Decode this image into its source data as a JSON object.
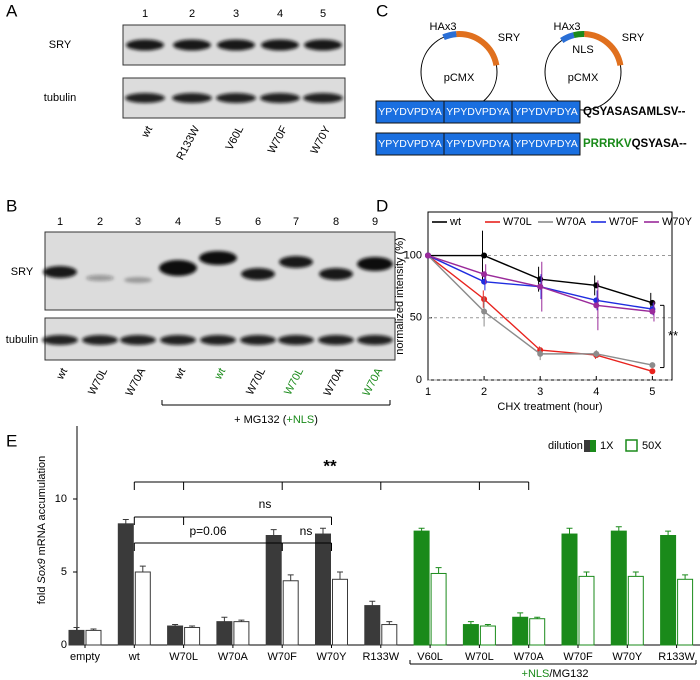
{
  "panels": {
    "a": "A",
    "b": "B",
    "c": "C",
    "d": "D",
    "e": "E"
  },
  "panel_a": {
    "lane_numbers": [
      1,
      2,
      3,
      4,
      5
    ],
    "rows": [
      "SRY",
      "tubulin"
    ],
    "lanes": [
      "wt",
      "R133W",
      "V60L",
      "W70F",
      "W70Y"
    ]
  },
  "panel_b": {
    "lane_numbers": [
      1,
      2,
      3,
      4,
      5,
      6,
      7,
      8,
      9
    ],
    "rows": [
      "SRY",
      "tubulin"
    ],
    "lanes": [
      {
        "label": "wt",
        "color": "#000000"
      },
      {
        "label": "W70L",
        "color": "#000000"
      },
      {
        "label": "W70A",
        "color": "#000000"
      },
      {
        "label": "wt",
        "color": "#000000"
      },
      {
        "label": "wt",
        "color": "#1a8a1a"
      },
      {
        "label": "W70L",
        "color": "#000000"
      },
      {
        "label": "W70L",
        "color": "#1a8a1a"
      },
      {
        "label": "W70A",
        "color": "#000000"
      },
      {
        "label": "W70A",
        "color": "#1a8a1a"
      }
    ],
    "bracket": [
      {
        "text": "+ MG132 (",
        "color": "#000000"
      },
      {
        "text": "+NLS",
        "color": "#1a8a1a"
      },
      {
        "text": ")",
        "color": "#000000"
      }
    ]
  },
  "panel_c": {
    "plasmids": [
      {
        "backbone": "pCMX",
        "tag": "HAx3",
        "gene": "SRY"
      },
      {
        "backbone": "pCMX",
        "tag": "HAx3",
        "nls": "NLS",
        "gene": "SRY"
      }
    ],
    "sequences": [
      {
        "tags": [
          "YPYDVPDYA",
          "YPYDVPDYA",
          "YPYDVPDYA"
        ],
        "parts": [
          {
            "text": "QSYASASAMLSV--",
            "color": "#000000"
          }
        ]
      },
      {
        "tags": [
          "YPYDVPDYA",
          "YPYDVPDYA",
          "YPYDVPDYA"
        ],
        "parts": [
          {
            "text": "PRRRKV",
            "color": "#1a8a1a"
          },
          {
            "text": "QSYASA--",
            "color": "#000000"
          }
        ]
      }
    ]
  },
  "chart_data": [
    {
      "type": "line",
      "x_label": "CHX treatment (hour)",
      "y_label": "normalized intensity (%)",
      "x": [
        1,
        2,
        3,
        4,
        5
      ],
      "xlim": [
        1,
        5.35
      ],
      "xticks": [
        1,
        2,
        3,
        4,
        5
      ],
      "ylim": [
        0,
        135
      ],
      "yticks": [
        0,
        50,
        100
      ],
      "grid": true,
      "series": [
        {
          "name": "wt",
          "color": "#000000",
          "values": [
            100,
            100,
            81,
            76,
            62
          ],
          "errors": [
            0,
            20,
            10,
            8,
            8
          ]
        },
        {
          "name": "W70L",
          "color": "#e8231e",
          "values": [
            100,
            65,
            24,
            20,
            7
          ],
          "errors": [
            0,
            7,
            3,
            3,
            2
          ]
        },
        {
          "name": "W70A",
          "color": "#8c8c8c",
          "values": [
            100,
            55,
            21,
            21,
            12
          ],
          "errors": [
            0,
            12,
            5,
            3,
            2
          ]
        },
        {
          "name": "W70F",
          "color": "#1f2de0",
          "values": [
            100,
            79,
            75,
            64,
            57
          ],
          "errors": [
            0,
            7,
            10,
            8,
            5
          ]
        },
        {
          "name": "W70Y",
          "color": "#9a2a9a",
          "values": [
            100,
            85,
            75,
            60,
            55
          ],
          "errors": [
            0,
            8,
            20,
            20,
            8
          ]
        }
      ],
      "annotations": [
        "**"
      ]
    },
    {
      "type": "bar",
      "y_label_parts": [
        "fold ",
        "Sox9",
        " mRNA accumulation"
      ],
      "y_label_italic": [
        false,
        true,
        false
      ],
      "categories": [
        "empty",
        "wt",
        "W70L",
        "W70A",
        "W70F",
        "W70Y",
        "R133W",
        "V60L",
        "W70L",
        "W70A",
        "W70F",
        "W70Y",
        "R133W"
      ],
      "ylim": [
        0,
        15
      ],
      "yticks": [
        0,
        5,
        10
      ],
      "legend_title": "dilution",
      "series": [
        {
          "name": "1X",
          "filled": true,
          "colors": [
            "#3a3a3a",
            "#3a3a3a",
            "#3a3a3a",
            "#3a3a3a",
            "#3a3a3a",
            "#3a3a3a",
            "#3a3a3a",
            "#1a8a1a",
            "#1a8a1a",
            "#1a8a1a",
            "#1a8a1a",
            "#1a8a1a",
            "#1a8a1a"
          ],
          "values": [
            1.0,
            8.3,
            1.3,
            1.6,
            7.5,
            7.6,
            2.7,
            7.8,
            1.4,
            1.9,
            7.6,
            7.8,
            7.5
          ],
          "errors": [
            0.2,
            0.3,
            0.1,
            0.3,
            0.4,
            0.4,
            0.3,
            0.2,
            0.2,
            0.3,
            0.4,
            0.3,
            0.3
          ]
        },
        {
          "name": "50X",
          "filled": false,
          "colors": [
            "#3a3a3a",
            "#3a3a3a",
            "#3a3a3a",
            "#3a3a3a",
            "#3a3a3a",
            "#3a3a3a",
            "#3a3a3a",
            "#1a8a1a",
            "#1a8a1a",
            "#1a8a1a",
            "#1a8a1a",
            "#1a8a1a",
            "#1a8a1a"
          ],
          "values": [
            1.0,
            5.0,
            1.2,
            1.6,
            4.4,
            4.5,
            1.4,
            4.9,
            1.3,
            1.8,
            4.7,
            4.7,
            4.5
          ],
          "errors": [
            0.1,
            0.4,
            0.1,
            0.1,
            0.4,
            0.5,
            0.2,
            0.4,
            0.1,
            0.1,
            0.3,
            0.3,
            0.3
          ]
        }
      ],
      "annotations": [
        "**",
        "ns",
        "p=0.06",
        "ns"
      ],
      "group_label": [
        {
          "text": "+NLS",
          "color": "#1a8a1a"
        },
        {
          "text": "/MG132",
          "color": "#000000"
        }
      ]
    }
  ]
}
